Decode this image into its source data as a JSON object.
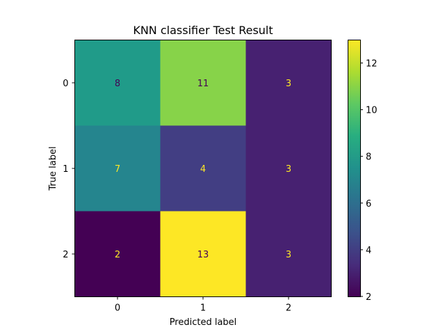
{
  "chart_data": {
    "type": "heatmap",
    "title": "KNN classifier Test Result",
    "xlabel": "Predicted label",
    "ylabel": "True label",
    "x_categories": [
      "0",
      "1",
      "2"
    ],
    "y_categories": [
      "0",
      "1",
      "2"
    ],
    "matrix": [
      [
        8,
        11,
        3
      ],
      [
        7,
        4,
        3
      ],
      [
        2,
        13,
        3
      ]
    ],
    "colormap": "viridis",
    "colorbar": {
      "range": [
        2,
        13
      ],
      "ticks": [
        2,
        4,
        6,
        8,
        10,
        12
      ]
    },
    "label_colors": {
      "dark": "#440154",
      "light": "#fde725"
    }
  }
}
